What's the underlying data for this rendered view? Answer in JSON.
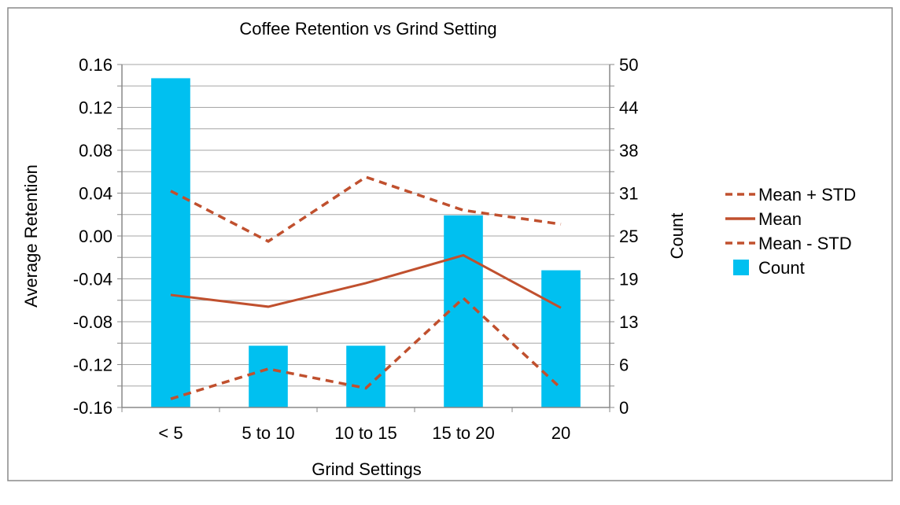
{
  "chart_data": {
    "type": "bar",
    "title": "Coffee Retention vs Grind Setting",
    "xlabel": "Grind Settings",
    "ylabel": "Average Retention",
    "y2label": "Count",
    "categories": [
      "< 5",
      "5 to 10",
      "10 to 15",
      "15 to 20",
      "20"
    ],
    "ylim": [
      -0.16,
      0.16
    ],
    "y_ticks": [
      "0.16",
      "0.12",
      "0.08",
      "0.04",
      "0.00",
      "-0.04",
      "-0.08",
      "-0.12",
      "-0.16"
    ],
    "y2lim": [
      0,
      50
    ],
    "y2_ticks": [
      "50",
      "44",
      "38",
      "31",
      "25",
      "19",
      "13",
      "6",
      "0"
    ],
    "grid": true,
    "legend_position": "right",
    "series": [
      {
        "name": "Mean + STD",
        "type": "line",
        "style": "dashed",
        "color": "#C0502E",
        "axis": "left",
        "values": [
          0.042,
          -0.005,
          0.055,
          0.024,
          0.011
        ]
      },
      {
        "name": "Mean",
        "type": "line",
        "style": "solid",
        "color": "#C0502E",
        "axis": "left",
        "values": [
          -0.055,
          -0.066,
          -0.044,
          -0.018,
          -0.067
        ]
      },
      {
        "name": "Mean - STD",
        "type": "line",
        "style": "dashed",
        "color": "#C0502E",
        "axis": "left",
        "values": [
          -0.152,
          -0.124,
          -0.142,
          -0.058,
          -0.142
        ]
      },
      {
        "name": "Count",
        "type": "bar",
        "color": "#00C0F0",
        "axis": "right",
        "values": [
          48,
          9,
          9,
          28,
          20
        ]
      }
    ],
    "legend_order": [
      "Mean + STD",
      "Mean",
      "Mean - STD",
      "Count"
    ]
  }
}
